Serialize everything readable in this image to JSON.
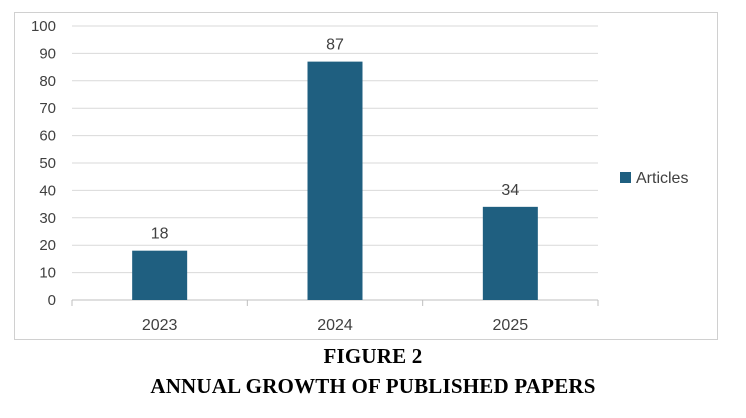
{
  "chart_data": {
    "type": "bar",
    "categories": [
      "2023",
      "2024",
      "2025"
    ],
    "series": [
      {
        "name": "Articles",
        "values": [
          18,
          87,
          34
        ]
      }
    ],
    "data_labels": [
      "18",
      "87",
      "34"
    ],
    "title": "",
    "xlabel": "",
    "ylabel": "",
    "ylim": [
      0,
      100
    ],
    "y_ticks": [
      "0",
      "10",
      "20",
      "30",
      "40",
      "50",
      "60",
      "70",
      "80",
      "90",
      "100"
    ],
    "grid": true,
    "legend_position": "right",
    "bar_color": "#1f5f80",
    "grid_color": "#d9d9d9",
    "axis_color": "#bfbfbf",
    "text_color": "#404040"
  },
  "caption": {
    "figure_number": "FIGURE 2",
    "figure_title": "ANNUAL GROWTH OF PUBLISHED PAPERS"
  }
}
